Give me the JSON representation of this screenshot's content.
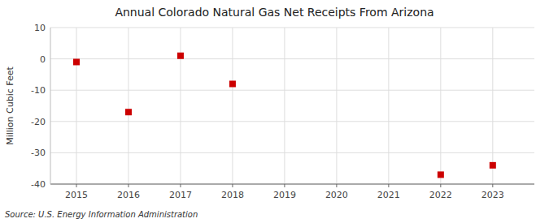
{
  "chart_data": {
    "type": "scatter",
    "title": "Annual Colorado Natural Gas Net Receipts From Arizona",
    "ylabel": "Million Cubic Feet",
    "source": "Source: U.S. Energy Information Administration",
    "x": [
      2015,
      2016,
      2017,
      2018,
      2022,
      2023
    ],
    "values": [
      -1,
      -17,
      1,
      -8,
      -37,
      -34
    ],
    "color": "#cc0000",
    "marker": "square",
    "xlim": [
      2014.5,
      2023.8
    ],
    "ylim": [
      -40,
      10
    ],
    "xticks": [
      2015,
      2016,
      2017,
      2018,
      2019,
      2020,
      2021,
      2022,
      2023
    ],
    "yticks": [
      -40,
      -30,
      -20,
      -10,
      0,
      10
    ],
    "grid": true
  }
}
